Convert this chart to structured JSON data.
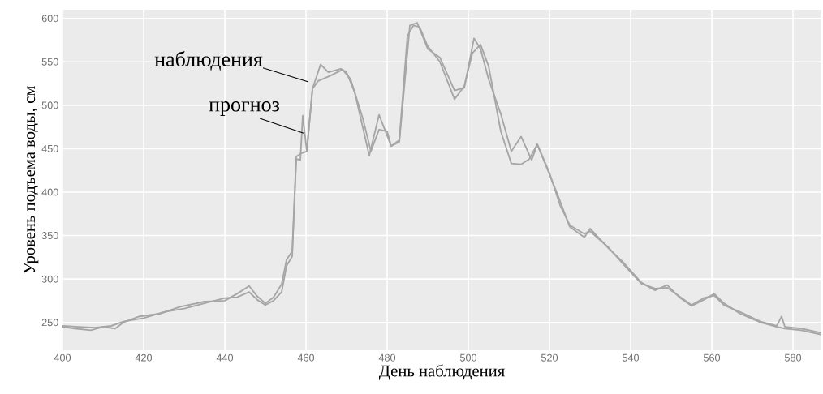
{
  "chart_data": {
    "type": "line",
    "xlabel": "День наблюдения",
    "ylabel": "Уровень подъема воды, см",
    "xlim": [
      400,
      587
    ],
    "ylim": [
      218,
      610
    ],
    "xticks": [
      400,
      420,
      440,
      460,
      480,
      500,
      520,
      540,
      560,
      580
    ],
    "yticks": [
      250,
      300,
      350,
      400,
      450,
      500,
      550,
      600
    ],
    "grid": true,
    "line_style": "solid",
    "series": [
      {
        "name": "наблюдения",
        "color": "#a6a6a6",
        "x": [
          400,
          403,
          407,
          410,
          413,
          415,
          419,
          424,
          429,
          435,
          440,
          443,
          446,
          448,
          450,
          452,
          454,
          455.2,
          456.6,
          457.6,
          459,
          460.2,
          461.6,
          463.6,
          465.5,
          468.6,
          470,
          472,
          475.6,
          478,
          481,
          483,
          485.6,
          487.4,
          490,
          493,
          496.6,
          499,
          501.4,
          503,
          505,
          508,
          510.6,
          513,
          515.6,
          517,
          519.6,
          522,
          525,
          528.6,
          530,
          534.6,
          538,
          542.6,
          546,
          549,
          552,
          555,
          558,
          560.6,
          563,
          567,
          572,
          576,
          578,
          582,
          587
        ],
        "values": [
          245,
          243,
          241,
          245,
          243,
          250,
          257,
          260,
          268,
          274,
          275,
          283,
          292,
          280,
          272,
          279,
          294,
          322,
          332,
          441,
          445,
          447,
          519,
          547,
          538,
          542,
          538,
          515,
          442,
          489,
          453,
          458,
          592,
          595,
          565,
          555,
          517,
          520,
          577,
          565,
          530,
          490,
          447,
          464,
          437,
          455,
          425,
          397,
          360,
          348,
          358,
          335,
          320,
          296,
          287,
          293,
          279,
          269,
          276,
          283,
          272,
          260,
          250,
          245,
          243,
          241,
          236
        ]
      },
      {
        "name": "прогноз",
        "color": "#a6a6a6",
        "x": [
          400,
          404,
          408,
          412,
          415,
          420,
          425,
          430,
          435,
          440,
          443,
          446,
          448,
          450,
          452,
          454,
          455.2,
          456.6,
          457.6,
          458.6,
          459.2,
          460.2,
          461.6,
          463,
          466,
          469,
          471,
          474,
          476,
          478,
          480,
          481,
          483,
          485,
          486.5,
          488,
          490,
          493,
          496.6,
          499,
          501,
          503,
          505,
          508,
          510.6,
          513,
          515,
          517,
          520,
          522.6,
          525,
          528.6,
          530,
          534.6,
          538,
          542.6,
          546,
          549,
          552,
          555,
          558,
          560.6,
          563,
          567,
          572,
          576,
          577.2,
          578,
          582,
          587
        ],
        "values": [
          246,
          245,
          244,
          246,
          251,
          255,
          262,
          266,
          272,
          278,
          279,
          285,
          276,
          270,
          275,
          285,
          315,
          326,
          438,
          437,
          488,
          447,
          519,
          528,
          534,
          541,
          530,
          485,
          447,
          472,
          470,
          453,
          460,
          580,
          592,
          590,
          568,
          550,
          507,
          522,
          560,
          570,
          545,
          470,
          433,
          432,
          438,
          455,
          422,
          385,
          362,
          352,
          355,
          336,
          318,
          295,
          289,
          290,
          280,
          270,
          278,
          281,
          270,
          262,
          251,
          246,
          257,
          245,
          243,
          238
        ]
      }
    ]
  }
}
